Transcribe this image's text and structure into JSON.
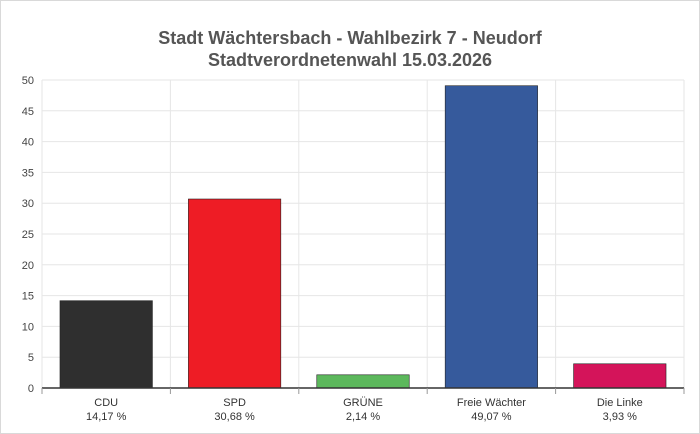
{
  "chart_data": {
    "type": "bar",
    "title": "Stadt Wächtersbach - Wahlbezirk 7 - Neudorf",
    "subtitle": "Stadtverordnetenwahl 15.03.2026",
    "categories": [
      "CDU",
      "SPD",
      "GRÜNE",
      "Freie Wächter",
      "Die Linke"
    ],
    "value_labels": [
      "14,17 %",
      "30,68 %",
      "2,14 %",
      "49,07 %",
      "3,93 %"
    ],
    "values": [
      14.17,
      30.68,
      2.14,
      49.07,
      3.93
    ],
    "colors": [
      "#2f2f2f",
      "#ee1c25",
      "#5cb85c",
      "#365a9c",
      "#d4145a"
    ],
    "ylim": [
      0,
      50
    ],
    "yticks": [
      0,
      5,
      10,
      15,
      20,
      25,
      30,
      35,
      40,
      45,
      50
    ],
    "xlabel": "",
    "ylabel": "",
    "grid": true,
    "legend": "none"
  }
}
